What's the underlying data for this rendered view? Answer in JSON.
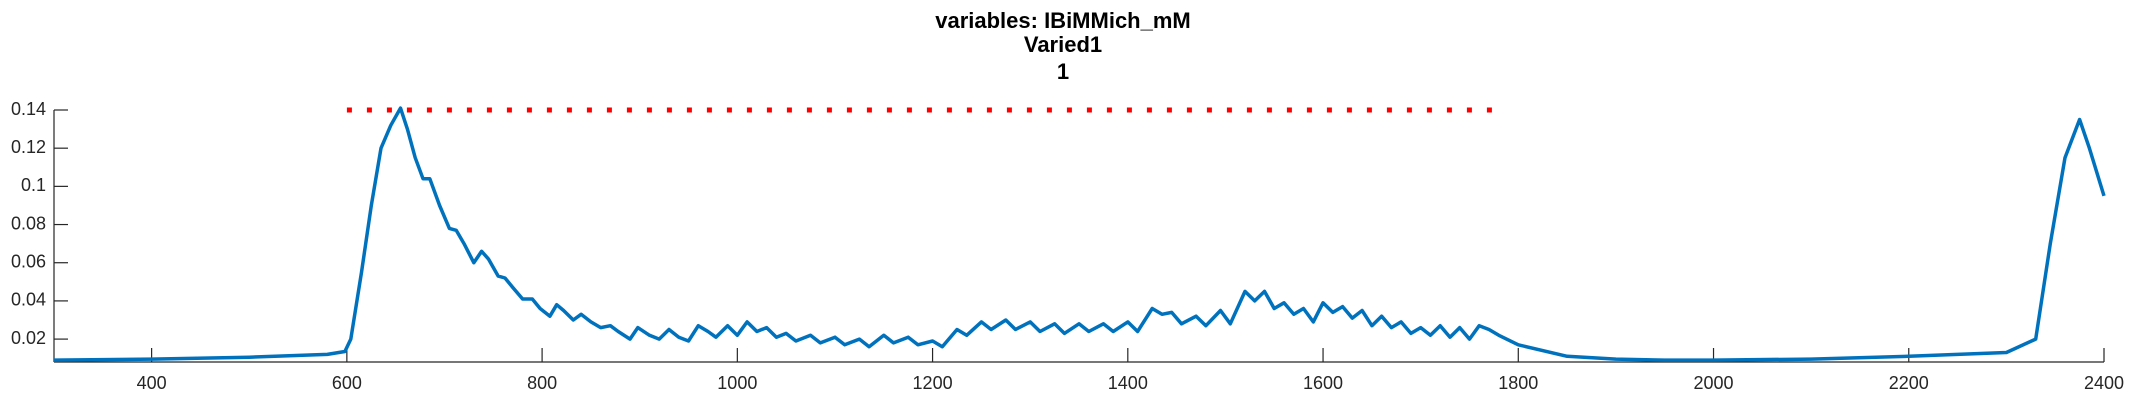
{
  "chart_data": {
    "type": "line",
    "title": "variables: IBiMMich_mM",
    "subtitle": "Varied1",
    "subtitle2": "1",
    "xlim": [
      300,
      2400
    ],
    "xticks": [
      400,
      600,
      800,
      1000,
      1200,
      1400,
      1600,
      1800,
      2000,
      2200,
      2400
    ],
    "ylim": [
      0.008,
      0.14
    ],
    "yticks": [
      0.02,
      0.04,
      0.06,
      0.08,
      0.1,
      0.12,
      0.14
    ],
    "series": [
      {
        "color": "#0072bd",
        "style": "solid",
        "x": [
          300,
          400,
          500,
          580,
          598,
          604,
          615,
          625,
          635,
          645,
          655,
          662,
          670,
          678,
          685,
          695,
          705,
          712,
          720,
          730,
          738,
          745,
          755,
          762,
          770,
          780,
          790,
          798,
          808,
          815,
          822,
          832,
          840,
          850,
          860,
          870,
          878,
          890,
          898,
          910,
          920,
          930,
          940,
          950,
          960,
          970,
          978,
          990,
          1000,
          1010,
          1020,
          1030,
          1040,
          1050,
          1060,
          1075,
          1085,
          1100,
          1110,
          1125,
          1135,
          1150,
          1160,
          1175,
          1185,
          1200,
          1210,
          1225,
          1235,
          1250,
          1260,
          1275,
          1285,
          1300,
          1310,
          1325,
          1335,
          1350,
          1360,
          1375,
          1385,
          1400,
          1410,
          1425,
          1435,
          1445,
          1455,
          1470,
          1480,
          1495,
          1505,
          1520,
          1530,
          1540,
          1550,
          1560,
          1570,
          1580,
          1590,
          1600,
          1610,
          1620,
          1630,
          1640,
          1650,
          1660,
          1670,
          1680,
          1690,
          1700,
          1710,
          1720,
          1730,
          1740,
          1750,
          1760,
          1770,
          1780,
          1800,
          1850,
          1900,
          1950,
          2000,
          2100,
          2200,
          2300,
          2330,
          2345,
          2360,
          2375,
          2385,
          2400
        ],
        "values": [
          0.009,
          0.0095,
          0.0105,
          0.012,
          0.0135,
          0.02,
          0.055,
          0.09,
          0.12,
          0.132,
          0.141,
          0.13,
          0.115,
          0.104,
          0.104,
          0.09,
          0.078,
          0.077,
          0.07,
          0.06,
          0.066,
          0.062,
          0.053,
          0.052,
          0.047,
          0.041,
          0.041,
          0.036,
          0.032,
          0.038,
          0.035,
          0.03,
          0.033,
          0.029,
          0.026,
          0.027,
          0.024,
          0.02,
          0.026,
          0.022,
          0.02,
          0.025,
          0.021,
          0.019,
          0.027,
          0.024,
          0.021,
          0.027,
          0.022,
          0.029,
          0.024,
          0.026,
          0.021,
          0.023,
          0.019,
          0.022,
          0.018,
          0.021,
          0.017,
          0.02,
          0.016,
          0.022,
          0.018,
          0.021,
          0.017,
          0.019,
          0.016,
          0.025,
          0.022,
          0.029,
          0.025,
          0.03,
          0.025,
          0.029,
          0.024,
          0.028,
          0.023,
          0.028,
          0.024,
          0.028,
          0.024,
          0.029,
          0.024,
          0.036,
          0.033,
          0.034,
          0.028,
          0.032,
          0.027,
          0.035,
          0.028,
          0.045,
          0.04,
          0.045,
          0.036,
          0.039,
          0.033,
          0.036,
          0.029,
          0.039,
          0.034,
          0.037,
          0.031,
          0.035,
          0.027,
          0.032,
          0.026,
          0.029,
          0.023,
          0.026,
          0.022,
          0.027,
          0.021,
          0.026,
          0.02,
          0.027,
          0.025,
          0.022,
          0.017,
          0.011,
          0.0095,
          0.009,
          0.009,
          0.0095,
          0.011,
          0.013,
          0.02,
          0.07,
          0.115,
          0.135,
          0.12,
          0.095
        ]
      },
      {
        "color": "#ff0000",
        "style": "dotted",
        "x": [
          600,
          1780
        ],
        "values": [
          0.14,
          0.14
        ]
      }
    ]
  }
}
